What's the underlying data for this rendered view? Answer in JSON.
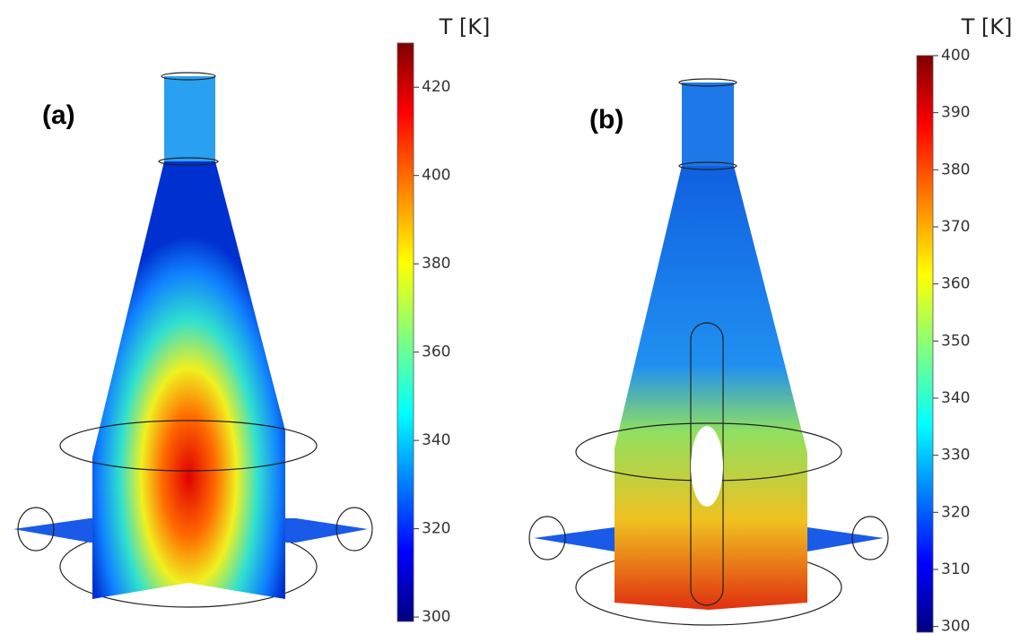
{
  "panels": [
    {
      "label": "(a)",
      "colorbar": {
        "title": "T [K]",
        "lim": [
          299,
          430
        ],
        "ticks": [
          300,
          320,
          340,
          360,
          380,
          400,
          420
        ]
      }
    },
    {
      "label": "(b)",
      "colorbar": {
        "title": "T [K]",
        "lim": [
          299,
          400
        ],
        "ticks": [
          300,
          310,
          320,
          330,
          340,
          350,
          360,
          370,
          380,
          390,
          400
        ]
      }
    }
  ]
}
